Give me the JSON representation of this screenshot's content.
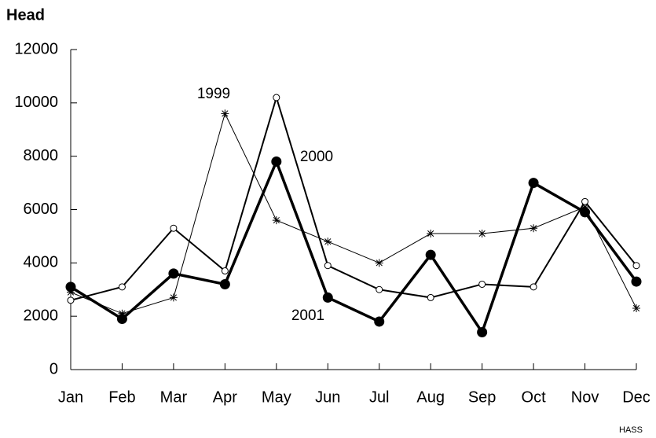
{
  "chart_data": {
    "type": "line",
    "ylabel": "Head",
    "source": "HASS",
    "categories": [
      "Jan",
      "Feb",
      "Mar",
      "Apr",
      "May",
      "Jun",
      "Jul",
      "Aug",
      "Sep",
      "Oct",
      "Nov",
      "Dec"
    ],
    "series": [
      {
        "name": "1999",
        "color": "#000000",
        "marker": "asterisk",
        "line_width": 1,
        "values": [
          2900,
          2100,
          2700,
          9600,
          5600,
          4800,
          4000,
          5100,
          5100,
          5300,
          6100,
          2300
        ]
      },
      {
        "name": "2000",
        "color": "#000000",
        "marker": "open-circle",
        "line_width": 2,
        "values": [
          2600,
          3100,
          5300,
          3700,
          10200,
          3900,
          3000,
          2700,
          3200,
          3100,
          6300,
          3900
        ]
      },
      {
        "name": "2001",
        "color": "#000000",
        "marker": "filled-circle",
        "line_width": 3.5,
        "values": [
          3100,
          1900,
          3600,
          3200,
          7800,
          2700,
          1800,
          4300,
          1400,
          7000,
          5900,
          3300
        ]
      }
    ],
    "ylim": [
      0,
      12000
    ],
    "yticks": [
      0,
      2000,
      4000,
      6000,
      8000,
      10000,
      12000
    ],
    "grid": false
  }
}
